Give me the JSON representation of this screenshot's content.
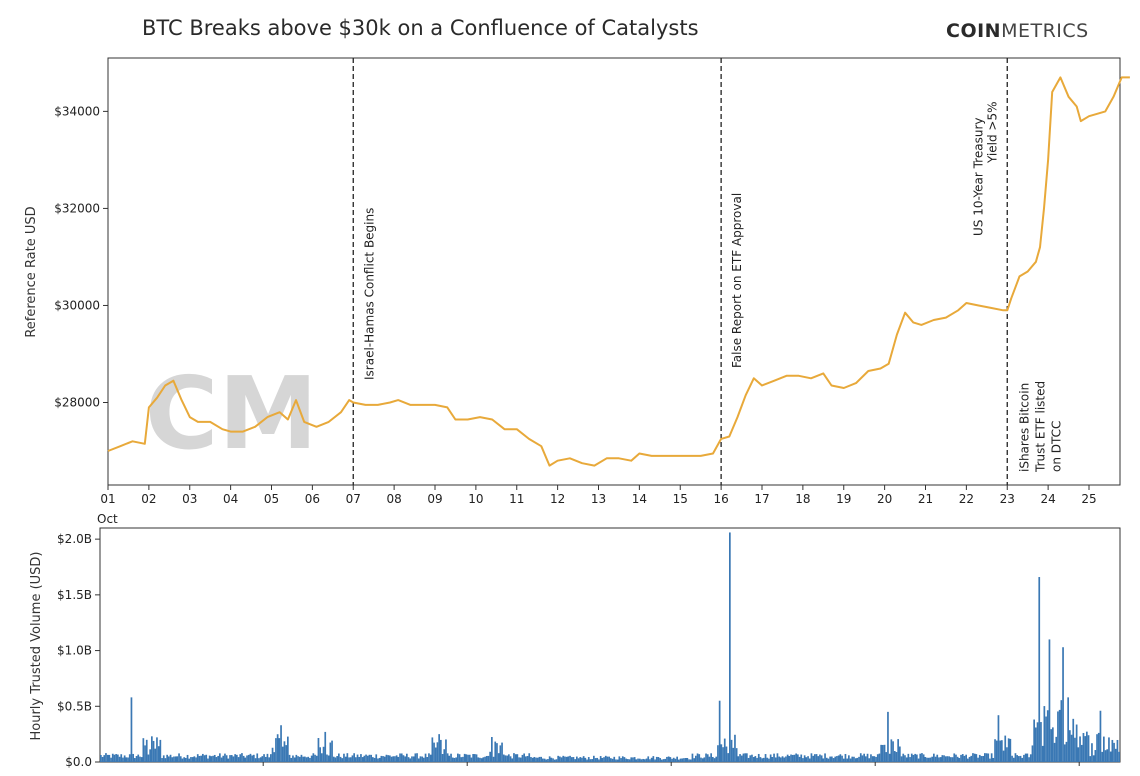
{
  "header": {
    "title": "BTC Breaks above $30k on a Confluence of Catalysts",
    "brand_bold": "COIN",
    "brand_light": "METRICS"
  },
  "watermark": "CM",
  "chart_data": [
    {
      "type": "line",
      "title": "BTC Breaks above $30k on a Confluence of Catalysts",
      "xlabel": "",
      "ylabel": "Reference Rate USD",
      "color": "#E8A93A",
      "xlim": [
        1,
        26
      ],
      "ylim": [
        26300,
        35100
      ],
      "x_ticks": [
        1,
        2,
        3,
        4,
        5,
        6,
        7,
        8,
        9,
        10,
        11,
        12,
        13,
        14,
        15,
        16,
        17,
        18,
        19,
        20,
        21,
        22,
        23,
        24,
        25
      ],
      "x_tick_labels": [
        "01",
        "02",
        "03",
        "04",
        "05",
        "06",
        "07",
        "08",
        "09",
        "10",
        "11",
        "12",
        "13",
        "14",
        "15",
        "16",
        "17",
        "18",
        "19",
        "20",
        "21",
        "22",
        "23",
        "24",
        "25"
      ],
      "x_sublabel": "Oct",
      "y_ticks": [
        28000,
        30000,
        32000,
        34000
      ],
      "y_tick_labels": [
        "$28000",
        "$30000",
        "$32000",
        "$34000"
      ],
      "points": [
        [
          1.0,
          27000
        ],
        [
          1.3,
          27100
        ],
        [
          1.6,
          27200
        ],
        [
          1.9,
          27150
        ],
        [
          2.0,
          27900
        ],
        [
          2.2,
          28100
        ],
        [
          2.4,
          28350
        ],
        [
          2.6,
          28450
        ],
        [
          2.8,
          28050
        ],
        [
          3.0,
          27700
        ],
        [
          3.2,
          27600
        ],
        [
          3.5,
          27600
        ],
        [
          3.8,
          27450
        ],
        [
          4.0,
          27400
        ],
        [
          4.3,
          27400
        ],
        [
          4.6,
          27500
        ],
        [
          4.9,
          27700
        ],
        [
          5.2,
          27800
        ],
        [
          5.4,
          27650
        ],
        [
          5.6,
          28050
        ],
        [
          5.8,
          27600
        ],
        [
          6.1,
          27500
        ],
        [
          6.4,
          27600
        ],
        [
          6.7,
          27800
        ],
        [
          6.9,
          28050
        ],
        [
          7.0,
          28000
        ],
        [
          7.3,
          27950
        ],
        [
          7.6,
          27950
        ],
        [
          7.9,
          28000
        ],
        [
          8.1,
          28050
        ],
        [
          8.4,
          27950
        ],
        [
          8.7,
          27950
        ],
        [
          9.0,
          27950
        ],
        [
          9.3,
          27900
        ],
        [
          9.5,
          27650
        ],
        [
          9.8,
          27650
        ],
        [
          10.1,
          27700
        ],
        [
          10.4,
          27650
        ],
        [
          10.7,
          27450
        ],
        [
          11.0,
          27450
        ],
        [
          11.3,
          27250
        ],
        [
          11.6,
          27100
        ],
        [
          11.8,
          26700
        ],
        [
          12.0,
          26800
        ],
        [
          12.3,
          26850
        ],
        [
          12.6,
          26750
        ],
        [
          12.9,
          26700
        ],
        [
          13.2,
          26850
        ],
        [
          13.5,
          26850
        ],
        [
          13.8,
          26800
        ],
        [
          14.0,
          26950
        ],
        [
          14.3,
          26900
        ],
        [
          14.6,
          26900
        ],
        [
          14.9,
          26900
        ],
        [
          15.2,
          26900
        ],
        [
          15.5,
          26900
        ],
        [
          15.8,
          26950
        ],
        [
          16.0,
          27250
        ],
        [
          16.2,
          27300
        ],
        [
          16.4,
          27700
        ],
        [
          16.6,
          28150
        ],
        [
          16.8,
          28500
        ],
        [
          17.0,
          28350
        ],
        [
          17.3,
          28450
        ],
        [
          17.6,
          28550
        ],
        [
          17.9,
          28550
        ],
        [
          18.2,
          28500
        ],
        [
          18.5,
          28600
        ],
        [
          18.7,
          28350
        ],
        [
          19.0,
          28300
        ],
        [
          19.3,
          28400
        ],
        [
          19.6,
          28650
        ],
        [
          19.9,
          28700
        ],
        [
          20.1,
          28800
        ],
        [
          20.3,
          29400
        ],
        [
          20.5,
          29850
        ],
        [
          20.7,
          29650
        ],
        [
          20.9,
          29600
        ],
        [
          21.2,
          29700
        ],
        [
          21.5,
          29750
        ],
        [
          21.8,
          29900
        ],
        [
          22.0,
          30050
        ],
        [
          22.3,
          30000
        ],
        [
          22.6,
          29950
        ],
        [
          22.9,
          29900
        ],
        [
          23.0,
          29900
        ],
        [
          23.1,
          30150
        ],
        [
          23.3,
          30600
        ],
        [
          23.5,
          30700
        ],
        [
          23.7,
          30900
        ],
        [
          23.8,
          31200
        ],
        [
          23.9,
          32000
        ],
        [
          24.0,
          33000
        ],
        [
          24.1,
          34400
        ],
        [
          24.3,
          34700
        ],
        [
          24.5,
          34300
        ],
        [
          24.7,
          34100
        ],
        [
          24.8,
          33800
        ],
        [
          25.0,
          33900
        ],
        [
          25.2,
          33950
        ],
        [
          25.4,
          34000
        ],
        [
          25.6,
          34300
        ],
        [
          25.8,
          34700
        ],
        [
          26.0,
          34700
        ]
      ],
      "events": [
        {
          "x": 7,
          "label": "Israel-Hamas Conflict Begins"
        },
        {
          "x": 16,
          "label": "False Report on ETF Approval"
        },
        {
          "x": 23,
          "label_above_1": "US 10-Year Treasury",
          "label_above_2": "Yield >5%",
          "label_below_1": "iShares Bitcoin",
          "label_below_2": "Trust ETF listed",
          "label_below_3": "on DTCC"
        }
      ]
    },
    {
      "type": "bar",
      "title": "",
      "xlabel": "",
      "ylabel": "Hourly Trusted Volume (USD)",
      "color": "#3A78B4",
      "xlim": [
        1,
        26
      ],
      "ylim": [
        0,
        2.1
      ],
      "y_ticks": [
        0,
        0.5,
        1.0,
        1.5,
        2.0
      ],
      "y_tick_labels": [
        "$0.0",
        "$0.5B",
        "$1.0B",
        "$1.5B",
        "$2.0B"
      ],
      "unit": "billion USD",
      "spikes": [
        {
          "day": 1.75,
          "value": 0.58
        },
        {
          "day": 5.4,
          "value": 0.33
        },
        {
          "day": 6.5,
          "value": 0.27
        },
        {
          "day": 9.3,
          "value": 0.25
        },
        {
          "day": 16.15,
          "value": 0.55
        },
        {
          "day": 16.4,
          "value": 2.06
        },
        {
          "day": 20.3,
          "value": 0.45
        },
        {
          "day": 23.0,
          "value": 0.42
        },
        {
          "day": 24.0,
          "value": 1.66
        },
        {
          "day": 24.25,
          "value": 1.1
        },
        {
          "day": 24.6,
          "value": 1.03
        },
        {
          "day": 24.7,
          "value": 0.58
        },
        {
          "day": 25.5,
          "value": 0.46
        }
      ]
    }
  ]
}
